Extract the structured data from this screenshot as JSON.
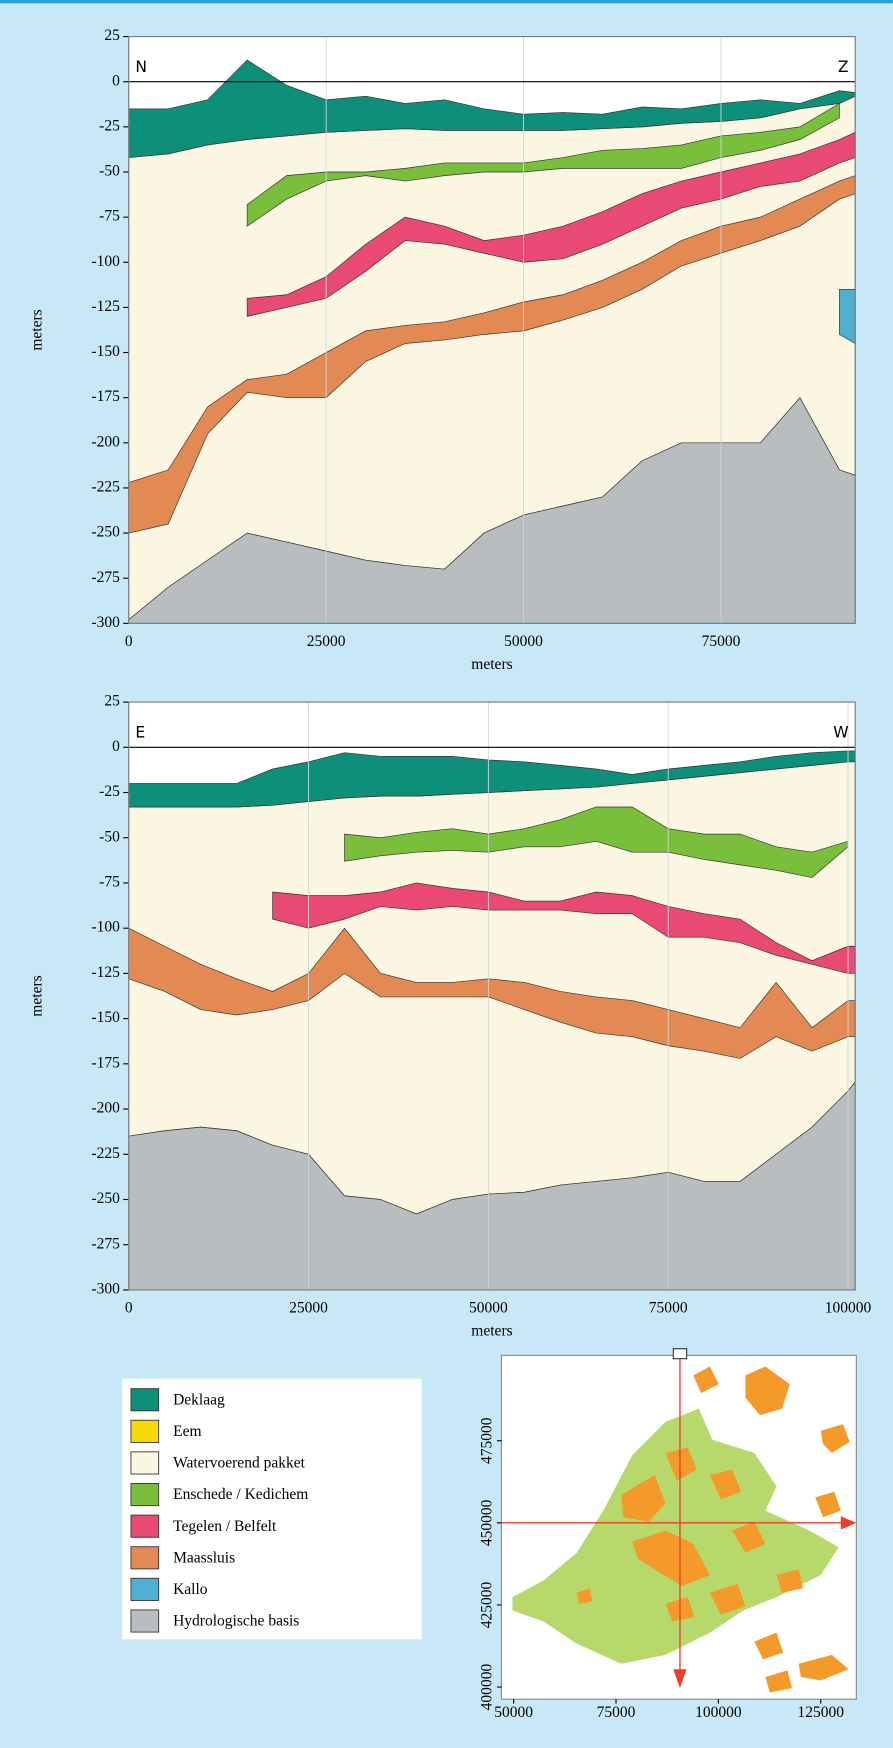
{
  "chart_data": [
    {
      "type": "area",
      "left_label": "N",
      "right_label": "Z",
      "xlabel": "meters",
      "ylabel": "meters",
      "xlim": [
        0,
        92000
      ],
      "ylim": [
        -300,
        25
      ],
      "xticks": [
        0,
        25000,
        50000,
        75000
      ],
      "yticks": [
        25,
        0,
        -25,
        -50,
        -75,
        -100,
        -125,
        -150,
        -175,
        -200,
        -225,
        -250,
        -275,
        -300
      ],
      "grid": "x",
      "x": [
        0,
        5000,
        10000,
        15000,
        20000,
        25000,
        30000,
        35000,
        40000,
        45000,
        50000,
        55000,
        60000,
        65000,
        70000,
        75000,
        80000,
        85000,
        90000,
        92000
      ],
      "series": [
        {
          "name": "Watervoerend pakket",
          "color": "#fbf6e2",
          "top": [
            -42,
            -40,
            -35,
            -32,
            -30,
            -28,
            -27,
            -26,
            -27,
            -27,
            -27,
            -27,
            -26,
            -25,
            -23,
            -22,
            -20,
            -15,
            -12,
            -8
          ],
          "bottom": [
            -298,
            -280,
            -265,
            -250,
            -255,
            -260,
            -265,
            -268,
            -270,
            -250,
            -240,
            -235,
            -230,
            -210,
            -200,
            -200,
            -200,
            -175,
            -215,
            -218
          ]
        },
        {
          "name": "Hydrologische basis",
          "color": "#b9bdbf",
          "top": [
            -298,
            -280,
            -265,
            -250,
            -255,
            -260,
            -265,
            -268,
            -270,
            -250,
            -240,
            -235,
            -230,
            -210,
            -200,
            -200,
            -200,
            -175,
            -215,
            -218
          ],
          "bottom": [
            -300,
            -300,
            -300,
            -300,
            -300,
            -300,
            -300,
            -300,
            -300,
            -300,
            -300,
            -300,
            -300,
            -300,
            -300,
            -300,
            -300,
            -300,
            -300,
            -300
          ]
        },
        {
          "name": "Deklaag",
          "color": "#0e8f7a",
          "top": [
            -15,
            -15,
            -10,
            12,
            -2,
            -10,
            -8,
            -12,
            -10,
            -15,
            -18,
            -17,
            -18,
            -14,
            -15,
            -12,
            -10,
            -12,
            -5,
            -6
          ],
          "bottom": [
            -42,
            -40,
            -35,
            -32,
            -30,
            -28,
            -27,
            -26,
            -27,
            -27,
            -27,
            -27,
            -26,
            -25,
            -23,
            -22,
            -20,
            -15,
            -12,
            -8
          ]
        },
        {
          "name": "Enschede / Kedichem",
          "color": "#79bf3b",
          "top": [
            null,
            null,
            null,
            -68,
            -52,
            -50,
            -50,
            -48,
            -45,
            -45,
            -45,
            -42,
            -38,
            -37,
            -35,
            -30,
            -28,
            -25,
            -12,
            null
          ],
          "bottom": [
            null,
            null,
            null,
            -80,
            -65,
            -55,
            -52,
            -55,
            -52,
            -50,
            -50,
            -48,
            -48,
            -48,
            -48,
            -42,
            -38,
            -32,
            -20,
            null
          ]
        },
        {
          "name": "Tegelen / Belfelt",
          "color": "#e84a73",
          "top": [
            null,
            null,
            null,
            -120,
            -118,
            -108,
            -90,
            -75,
            -80,
            -88,
            -85,
            -80,
            -72,
            -62,
            -55,
            -50,
            -45,
            -40,
            -32,
            -28
          ],
          "bottom": [
            null,
            null,
            null,
            -130,
            -125,
            -120,
            -105,
            -88,
            -90,
            -95,
            -100,
            -98,
            -90,
            -80,
            -70,
            -65,
            -58,
            -55,
            -45,
            -42
          ]
        },
        {
          "name": "Maassluis",
          "color": "#e38a54",
          "top": [
            -222,
            -215,
            -180,
            -165,
            -162,
            -150,
            -138,
            -135,
            -133,
            -128,
            -122,
            -118,
            -110,
            -100,
            -88,
            -80,
            -75,
            -65,
            -55,
            -52
          ],
          "bottom": [
            -250,
            -245,
            -195,
            -172,
            -175,
            -175,
            -155,
            -145,
            -143,
            -140,
            -138,
            -132,
            -125,
            -115,
            -102,
            -95,
            -88,
            -80,
            -65,
            -62
          ]
        },
        {
          "name": "Kallo",
          "color": "#4fb0d4",
          "top": [
            null,
            null,
            null,
            null,
            null,
            null,
            null,
            null,
            null,
            null,
            null,
            null,
            null,
            null,
            null,
            null,
            null,
            null,
            -115,
            -115
          ],
          "bottom": [
            null,
            null,
            null,
            null,
            null,
            null,
            null,
            null,
            null,
            null,
            null,
            null,
            null,
            null,
            null,
            null,
            null,
            null,
            -140,
            -145
          ]
        }
      ]
    },
    {
      "type": "area",
      "left_label": "E",
      "right_label": "W",
      "xlabel": "meters",
      "ylabel": "meters",
      "xlim": [
        0,
        101000
      ],
      "ylim": [
        -300,
        25
      ],
      "xticks": [
        0,
        25000,
        50000,
        75000,
        100000
      ],
      "yticks": [
        25,
        0,
        -25,
        -50,
        -75,
        -100,
        -125,
        -150,
        -175,
        -200,
        -225,
        -250,
        -275,
        -300
      ],
      "grid": "x",
      "x": [
        0,
        5000,
        10000,
        15000,
        20000,
        25000,
        30000,
        35000,
        40000,
        45000,
        50000,
        55000,
        60000,
        65000,
        70000,
        75000,
        80000,
        85000,
        90000,
        95000,
        100000,
        101000
      ],
      "series": [
        {
          "name": "Watervoerend pakket",
          "color": "#fbf6e2",
          "top": [
            -33,
            -33,
            -33,
            -33,
            -32,
            -30,
            -28,
            -27,
            -27,
            -26,
            -25,
            -24,
            -23,
            -22,
            -20,
            -18,
            -16,
            -14,
            -12,
            -10,
            -8,
            -8
          ],
          "bottom": [
            -215,
            -212,
            -210,
            -212,
            -220,
            -225,
            -248,
            -250,
            -258,
            -250,
            -247,
            -246,
            -242,
            -240,
            -238,
            -235,
            -240,
            -240,
            -225,
            -210,
            -190,
            -185
          ]
        },
        {
          "name": "Hydrologische basis",
          "color": "#b9bdbf",
          "top": [
            -215,
            -212,
            -210,
            -212,
            -220,
            -225,
            -248,
            -250,
            -258,
            -250,
            -247,
            -246,
            -242,
            -240,
            -238,
            -235,
            -240,
            -240,
            -225,
            -210,
            -190,
            -185
          ],
          "bottom": [
            -300,
            -300,
            -300,
            -300,
            -300,
            -300,
            -300,
            -300,
            -300,
            -300,
            -300,
            -300,
            -300,
            -300,
            -300,
            -300,
            -300,
            -300,
            -300,
            -300,
            -300,
            -300
          ]
        },
        {
          "name": "Deklaag",
          "color": "#0e8f7a",
          "top": [
            -20,
            -20,
            -20,
            -20,
            -12,
            -8,
            -3,
            -5,
            -5,
            -5,
            -7,
            -8,
            -10,
            -12,
            -15,
            -12,
            -10,
            -8,
            -5,
            -3,
            -2,
            -2
          ],
          "bottom": [
            -33,
            -33,
            -33,
            -33,
            -32,
            -30,
            -28,
            -27,
            -27,
            -26,
            -25,
            -24,
            -23,
            -22,
            -20,
            -18,
            -16,
            -14,
            -12,
            -10,
            -8,
            -8
          ]
        },
        {
          "name": "Enschede / Kedichem",
          "color": "#79bf3b",
          "top": [
            null,
            null,
            null,
            null,
            null,
            null,
            -48,
            -50,
            -47,
            -45,
            -48,
            -45,
            -40,
            -33,
            -33,
            -45,
            -48,
            -48,
            -55,
            -58,
            -52,
            null
          ],
          "bottom": [
            null,
            null,
            null,
            null,
            null,
            null,
            -63,
            -60,
            -58,
            -57,
            -58,
            -55,
            -55,
            -52,
            -58,
            -58,
            -62,
            -65,
            -68,
            -72,
            -55,
            null
          ]
        },
        {
          "name": "Tegelen / Belfelt",
          "color": "#e84a73",
          "top": [
            null,
            null,
            null,
            null,
            -80,
            -82,
            -82,
            -80,
            -75,
            -78,
            -80,
            -85,
            -85,
            -80,
            -82,
            -88,
            -92,
            -95,
            -108,
            -118,
            -110,
            -110
          ],
          "bottom": [
            null,
            null,
            null,
            null,
            -95,
            -100,
            -95,
            -88,
            -90,
            -88,
            -90,
            -90,
            -90,
            -92,
            -92,
            -105,
            -105,
            -108,
            -115,
            -120,
            -125,
            -125
          ]
        },
        {
          "name": "Maassluis",
          "color": "#e38a54",
          "top": [
            -100,
            -110,
            -120,
            -128,
            -135,
            -125,
            -100,
            -125,
            -130,
            -130,
            -128,
            -130,
            -135,
            -138,
            -140,
            -145,
            -150,
            -155,
            -130,
            -155,
            -140,
            -140
          ],
          "bottom": [
            -128,
            -135,
            -145,
            -148,
            -145,
            -140,
            -125,
            -138,
            -138,
            -138,
            -138,
            -145,
            -152,
            -158,
            -160,
            -165,
            -168,
            -172,
            -160,
            -168,
            -160,
            -160
          ]
        }
      ]
    },
    {
      "type": "map",
      "xlim": [
        47000,
        133700
      ],
      "ylim": [
        396300,
        501000
      ],
      "xticks": [
        50000,
        75000,
        100000,
        125000
      ],
      "yticks": [
        400000,
        425000,
        450000,
        475000
      ]
    }
  ],
  "legend": [
    {
      "name": "Deklaag",
      "color": "#0e8f7a"
    },
    {
      "name": "Eem",
      "color": "#f8d70b"
    },
    {
      "name": "Watervoerend pakket",
      "color": "#fbf6e2"
    },
    {
      "name": "Enschede / Kedichem",
      "color": "#79bf3b"
    },
    {
      "name": "Tegelen / Belfelt",
      "color": "#e84a73"
    },
    {
      "name": "Maassluis",
      "color": "#e38a54"
    },
    {
      "name": "Kallo",
      "color": "#4fb0d4"
    },
    {
      "name": "Hydrologische basis",
      "color": "#b9bdbf"
    }
  ]
}
